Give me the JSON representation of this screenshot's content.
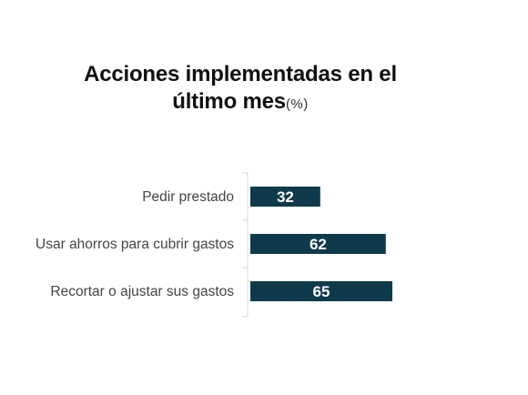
{
  "chart_data": {
    "type": "bar",
    "orientation": "horizontal",
    "title": "Acciones implementadas en el último mes",
    "title_lines": [
      "Acciones implementadas en el",
      "último mes"
    ],
    "title_unit": "(%)",
    "categories": [
      "Pedir prestado",
      "Usar ahorros para cubrir gastos",
      "Recortar o ajustar sus gastos"
    ],
    "values": [
      32,
      62,
      65
    ],
    "xlim": [
      0,
      100
    ],
    "bar_color": "#0f3a4c",
    "value_label_color": "#ffffff",
    "grid": false,
    "legend": "none"
  }
}
